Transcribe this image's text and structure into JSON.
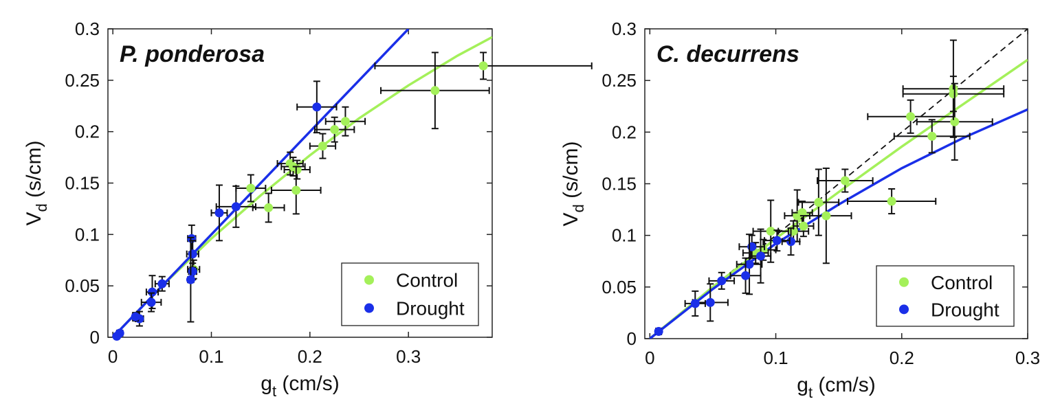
{
  "colors": {
    "control": "#a4f05a",
    "drought": "#1a2fe8",
    "errorbar": "#111111",
    "axis": "#222222",
    "reference": "#111111"
  },
  "legend": {
    "control_label": "Control",
    "drought_label": "Drought",
    "placement": "bottom-right"
  },
  "axis_text": {
    "y_main": "V",
    "y_sub": "d",
    "y_unit": " (s/cm)",
    "x_main": "g",
    "x_sub": "t",
    "x_unit": " (cm/s)"
  },
  "chart_data": [
    {
      "type": "scatter",
      "title": "P. ponderosa",
      "xlim": [
        -0.005,
        0.385
      ],
      "ylim": [
        0,
        0.3
      ],
      "xticks": [
        "0",
        "0.1",
        "0.2",
        "0.3"
      ],
      "xtick_values": [
        0,
        0.1,
        0.2,
        0.3
      ],
      "yticks": [
        "0",
        "0.05",
        "0.1",
        "0.15",
        "0.2",
        "0.25",
        "0.3"
      ],
      "ytick_values": [
        0,
        0.05,
        0.1,
        0.15,
        0.2,
        0.25,
        0.3
      ],
      "grid": false,
      "reference_line": false,
      "series": [
        {
          "name": "Control",
          "points": [
            {
              "x": 0.376,
              "y": 0.264,
              "xerr": 0.11,
              "yerr": 0.013
            },
            {
              "x": 0.327,
              "y": 0.24,
              "xerr": 0.055,
              "yerr": 0.037
            },
            {
              "x": 0.236,
              "y": 0.21,
              "xerr": 0.02,
              "yerr": 0.014
            },
            {
              "x": 0.225,
              "y": 0.202,
              "xerr": 0.02,
              "yerr": 0.012
            },
            {
              "x": 0.213,
              "y": 0.186,
              "xerr": 0.013,
              "yerr": 0.012
            },
            {
              "x": 0.187,
              "y": 0.163,
              "xerr": 0.013,
              "yerr": 0.009
            },
            {
              "x": 0.18,
              "y": 0.169,
              "xerr": 0.013,
              "yerr": 0.011
            },
            {
              "x": 0.183,
              "y": 0.166,
              "xerr": 0.012,
              "yerr": 0.009
            },
            {
              "x": 0.186,
              "y": 0.143,
              "xerr": 0.025,
              "yerr": 0.023
            },
            {
              "x": 0.14,
              "y": 0.145,
              "xerr": 0.015,
              "yerr": 0.013
            },
            {
              "x": 0.158,
              "y": 0.126,
              "xerr": 0.016,
              "yerr": 0.014
            },
            {
              "x": 0.082,
              "y": 0.066,
              "xerr": 0.006,
              "yerr": 0.009
            }
          ]
        },
        {
          "name": "Drought",
          "points": [
            {
              "x": 0.207,
              "y": 0.224,
              "xerr": 0.02,
              "yerr": 0.025
            },
            {
              "x": 0.125,
              "y": 0.127,
              "xerr": 0.02,
              "yerr": 0.02
            },
            {
              "x": 0.108,
              "y": 0.121,
              "xerr": 0.008,
              "yerr": 0.027
            },
            {
              "x": 0.08,
              "y": 0.096,
              "xerr": 0.004,
              "yerr": 0.013
            },
            {
              "x": 0.081,
              "y": 0.081,
              "xerr": 0.006,
              "yerr": 0.013
            },
            {
              "x": 0.081,
              "y": 0.064,
              "xerr": 0.004,
              "yerr": 0.008
            },
            {
              "x": 0.079,
              "y": 0.056,
              "xerr": 0.003,
              "yerr": 0.041
            },
            {
              "x": 0.05,
              "y": 0.052,
              "xerr": 0.007,
              "yerr": 0.007
            },
            {
              "x": 0.04,
              "y": 0.044,
              "xerr": 0.006,
              "yerr": 0.016
            },
            {
              "x": 0.039,
              "y": 0.034,
              "xerr": 0.01,
              "yerr": 0.009
            },
            {
              "x": 0.027,
              "y": 0.018,
              "xerr": 0.004,
              "yerr": 0.007
            },
            {
              "x": 0.023,
              "y": 0.02,
              "xerr": 0.003,
              "yerr": 0.004
            },
            {
              "x": 0.007,
              "y": 0.004,
              "xerr": 0.003,
              "yerr": 0.002
            },
            {
              "x": 0.004,
              "y": 0.001,
              "xerr": 0.001,
              "yerr": 0.001
            }
          ]
        }
      ],
      "fits": [
        {
          "name": "Control",
          "x": [
            0,
            0.05,
            0.1,
            0.15,
            0.2,
            0.25,
            0.3,
            0.35,
            0.385
          ],
          "y": [
            0,
            0.05,
            0.096,
            0.138,
            0.177,
            0.213,
            0.245,
            0.274,
            0.292
          ]
        },
        {
          "name": "Drought",
          "x": [
            0,
            0.3
          ],
          "y": [
            0,
            0.3
          ]
        }
      ]
    },
    {
      "type": "scatter",
      "title": "C. decurrens",
      "xlim": [
        -0.004,
        0.3
      ],
      "ylim": [
        0,
        0.3
      ],
      "xticks": [
        "0",
        "0.1",
        "0.2",
        "0.3"
      ],
      "xtick_values": [
        0,
        0.1,
        0.2,
        0.3
      ],
      "yticks": [
        "0",
        "0.05",
        "0.1",
        "0.15",
        "0.2",
        "0.25",
        "0.3"
      ],
      "ytick_values": [
        0,
        0.05,
        0.1,
        0.15,
        0.2,
        0.25,
        0.3
      ],
      "grid": false,
      "reference_line": true,
      "series": [
        {
          "name": "Control",
          "points": [
            {
              "x": 0.241,
              "y": 0.242,
              "xerr": 0.04,
              "yerr": 0.047
            },
            {
              "x": 0.241,
              "y": 0.237,
              "xerr": 0.04,
              "yerr": 0.017
            },
            {
              "x": 0.242,
              "y": 0.21,
              "xerr": 0.03,
              "yerr": 0.037
            },
            {
              "x": 0.207,
              "y": 0.215,
              "xerr": 0.034,
              "yerr": 0.016
            },
            {
              "x": 0.224,
              "y": 0.196,
              "xerr": 0.03,
              "yerr": 0.016
            },
            {
              "x": 0.192,
              "y": 0.133,
              "xerr": 0.035,
              "yerr": 0.012
            },
            {
              "x": 0.155,
              "y": 0.153,
              "xerr": 0.022,
              "yerr": 0.011
            },
            {
              "x": 0.134,
              "y": 0.132,
              "xerr": 0.016,
              "yerr": 0.032
            },
            {
              "x": 0.14,
              "y": 0.119,
              "xerr": 0.02,
              "yerr": 0.046
            },
            {
              "x": 0.117,
              "y": 0.119,
              "xerr": 0.01,
              "yerr": 0.025
            },
            {
              "x": 0.121,
              "y": 0.122,
              "xerr": 0.008,
              "yerr": 0.011
            },
            {
              "x": 0.114,
              "y": 0.104,
              "xerr": 0.012,
              "yerr": 0.01
            },
            {
              "x": 0.122,
              "y": 0.109,
              "xerr": 0.008,
              "yerr": 0.01
            },
            {
              "x": 0.096,
              "y": 0.104,
              "xerr": 0.014,
              "yerr": 0.03
            },
            {
              "x": 0.09,
              "y": 0.086,
              "xerr": 0.01,
              "yerr": 0.01
            },
            {
              "x": 0.084,
              "y": 0.083,
              "xerr": 0.01,
              "yerr": 0.01
            }
          ]
        },
        {
          "name": "Drought",
          "points": [
            {
              "x": 0.112,
              "y": 0.094,
              "xerr": 0.007,
              "yerr": 0.013
            },
            {
              "x": 0.101,
              "y": 0.095,
              "xerr": 0.01,
              "yerr": 0.01
            },
            {
              "x": 0.081,
              "y": 0.089,
              "xerr": 0.01,
              "yerr": 0.011
            },
            {
              "x": 0.088,
              "y": 0.08,
              "xerr": 0.008,
              "yerr": 0.026
            },
            {
              "x": 0.079,
              "y": 0.072,
              "xerr": 0.01,
              "yerr": 0.029
            },
            {
              "x": 0.076,
              "y": 0.061,
              "xerr": 0.012,
              "yerr": 0.017
            },
            {
              "x": 0.057,
              "y": 0.056,
              "xerr": 0.01,
              "yerr": 0.008
            },
            {
              "x": 0.048,
              "y": 0.035,
              "xerr": 0.014,
              "yerr": 0.018
            },
            {
              "x": 0.036,
              "y": 0.034,
              "xerr": 0.008,
              "yerr": 0.012
            },
            {
              "x": 0.007,
              "y": 0.007,
              "xerr": 0.002,
              "yerr": 0.003
            }
          ]
        }
      ],
      "fits": [
        {
          "name": "Control",
          "x": [
            0,
            0.05,
            0.1,
            0.15,
            0.2,
            0.25,
            0.3
          ],
          "y": [
            0,
            0.05,
            0.097,
            0.142,
            0.186,
            0.228,
            0.27
          ]
        },
        {
          "name": "Drought",
          "x": [
            0,
            0.05,
            0.1,
            0.15,
            0.2,
            0.25,
            0.3
          ],
          "y": [
            0,
            0.048,
            0.092,
            0.13,
            0.165,
            0.195,
            0.222
          ]
        }
      ]
    }
  ]
}
